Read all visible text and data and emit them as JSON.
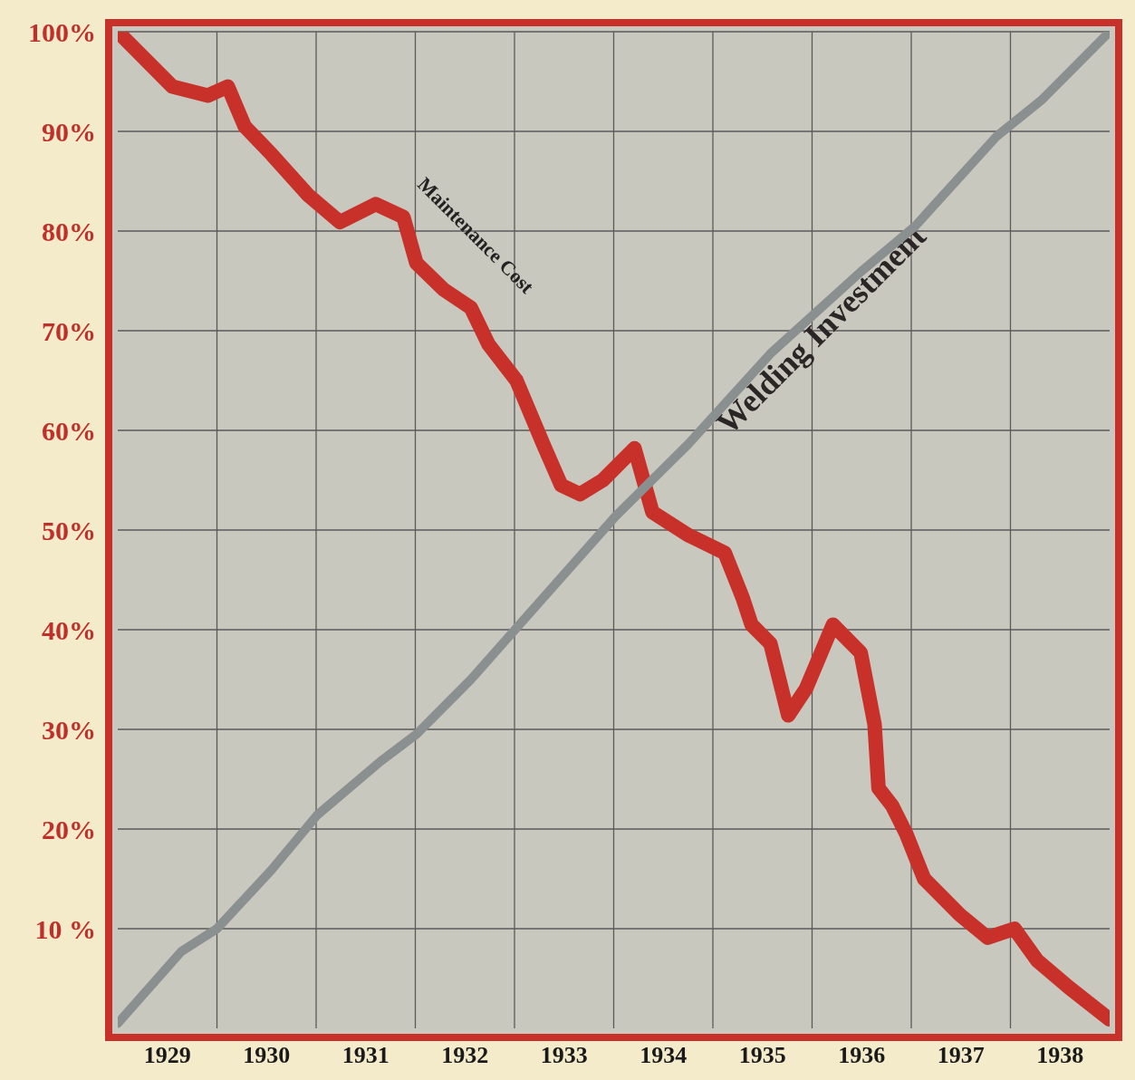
{
  "chart_data": {
    "type": "line",
    "xlim": [
      1929,
      1939
    ],
    "xticks": [
      {
        "value": 1929.5,
        "label": "1929"
      },
      {
        "value": 1930.5,
        "label": "1930"
      },
      {
        "value": 1931.5,
        "label": "1931"
      },
      {
        "value": 1932.5,
        "label": "1932"
      },
      {
        "value": 1933.5,
        "label": "1933"
      },
      {
        "value": 1934.5,
        "label": "1934"
      },
      {
        "value": 1935.5,
        "label": "1935"
      },
      {
        "value": 1936.5,
        "label": "1936"
      },
      {
        "value": 1937.5,
        "label": "1937"
      },
      {
        "value": 1938.5,
        "label": "1938"
      },
      {
        "value": 1930,
        "label": null
      },
      {
        "value": 1931,
        "label": null
      },
      {
        "value": 1932,
        "label": null
      },
      {
        "value": 1933,
        "label": null
      },
      {
        "value": 1934,
        "label": null
      },
      {
        "value": 1935,
        "label": null
      },
      {
        "value": 1936,
        "label": null
      },
      {
        "value": 1937,
        "label": null
      },
      {
        "value": 1938,
        "label": null
      }
    ],
    "ylim": [
      0,
      100
    ],
    "yticks": [
      {
        "value": 10,
        "label": "10 %"
      },
      {
        "value": 20,
        "label": "20%"
      },
      {
        "value": 30,
        "label": "30%"
      },
      {
        "value": 40,
        "label": "40%"
      },
      {
        "value": 50,
        "label": "50%"
      },
      {
        "value": 60,
        "label": "60%"
      },
      {
        "value": 70,
        "label": "70%"
      },
      {
        "value": 80,
        "label": "80%"
      },
      {
        "value": 90,
        "label": "90%"
      },
      {
        "value": 100,
        "label": "100%"
      }
    ],
    "grid": true,
    "legend": false,
    "marker": "none",
    "line_style": "solid",
    "series": [
      {
        "name": "Maintenance Cost",
        "color": "#c8302a",
        "x": [
          1929,
          1929.55,
          1929.91,
          1930.11,
          1930.28,
          1930.55,
          1930.92,
          1931.24,
          1931.6,
          1931.88,
          1932.01,
          1932.29,
          1932.56,
          1932.74,
          1933.02,
          1933.29,
          1933.47,
          1933.66,
          1933.89,
          1934.21,
          1934.3,
          1934.39,
          1934.75,
          1935.12,
          1935.3,
          1935.39,
          1935.58,
          1935.76,
          1935.94,
          1936.21,
          1936.49,
          1936.63,
          1936.67,
          1936.81,
          1936.95,
          1937.13,
          1937.49,
          1937.77,
          1938.04,
          1938.27,
          1938.59,
          1939
        ],
        "values": [
          100,
          94.5,
          93.6,
          94.5,
          90.5,
          87.7,
          83.6,
          80.9,
          82.7,
          81.4,
          76.8,
          74.1,
          72.3,
          68.6,
          65,
          58.6,
          54.5,
          53.6,
          55,
          58.2,
          55,
          51.8,
          49.5,
          47.7,
          43.2,
          40.5,
          38.6,
          31.4,
          34.1,
          40.5,
          37.7,
          30.5,
          24.1,
          22.3,
          19.5,
          15,
          11.4,
          9.1,
          10,
          6.8,
          4.1,
          0.9
        ]
      },
      {
        "name": "Welding Investment",
        "color": "#8a8f8f",
        "x": [
          1929,
          1929.64,
          1930,
          1930.55,
          1931.01,
          1931.65,
          1932.01,
          1932.56,
          1933.29,
          1934.02,
          1934.75,
          1935.58,
          1936.49,
          1937.04,
          1937.86,
          1938.32,
          1939
        ],
        "values": [
          0.5,
          7.7,
          10,
          15.9,
          21.4,
          26.8,
          29.5,
          35,
          43.2,
          51.4,
          58.6,
          67.7,
          75.9,
          80.5,
          89.5,
          93.2,
          100
        ]
      }
    ]
  }
}
